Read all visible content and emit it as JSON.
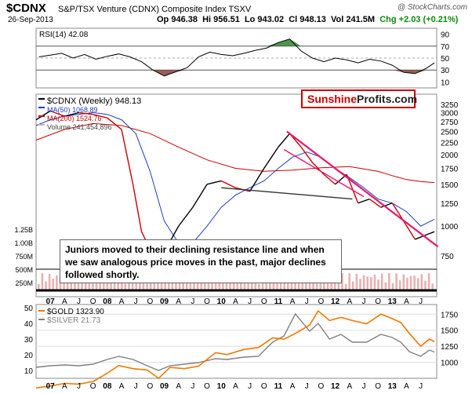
{
  "header": {
    "ticker": "$CDNX",
    "name": "S&P/TSX Venture (CDNX) Composite Index TSXV",
    "credit": "@ StockCharts.com",
    "date": "26-Sep-2013",
    "open": "Op 946.38",
    "high": "Hi 956.51",
    "low": "Lo 943.02",
    "close": "Cl 948.13",
    "volume": "Vol 241.5M",
    "change": "Chg +2.03 (+0.21%)",
    "change_color": "#0a8a0a"
  },
  "brand": {
    "part1": "Sunshine",
    "part2": "Profits.com"
  },
  "annotation": "Juniors moved to their declining resistance line and when we saw analogous price moves in the past, major declines followed shortly.",
  "chart_data": [
    {
      "type": "line",
      "panel": "rsi",
      "legend": [
        "RSI(14) 42.08"
      ],
      "ylim": [
        0,
        100
      ],
      "yticks": [
        10,
        30,
        50,
        70,
        90
      ],
      "x": [
        2006.8,
        2007.0,
        2007.2,
        2007.4,
        2007.6,
        2007.8,
        2008.0,
        2008.2,
        2008.4,
        2008.6,
        2008.8,
        2009.0,
        2009.2,
        2009.4,
        2009.6,
        2009.8,
        2010.0,
        2010.2,
        2010.4,
        2010.6,
        2010.8,
        2011.0,
        2011.2,
        2011.4,
        2011.6,
        2011.8,
        2012.0,
        2012.2,
        2012.4,
        2012.6,
        2012.8,
        2013.0,
        2013.2,
        2013.4,
        2013.6,
        2013.74
      ],
      "values": [
        52,
        55,
        58,
        50,
        56,
        48,
        53,
        57,
        52,
        44,
        30,
        20,
        27,
        34,
        52,
        60,
        56,
        54,
        58,
        63,
        67,
        76,
        82,
        62,
        50,
        44,
        50,
        47,
        42,
        48,
        45,
        38,
        26,
        24,
        33,
        42
      ],
      "overbought": 70,
      "oversold": 30,
      "colors": {
        "line": "#000000",
        "overbought_fill": "#3a8a3a",
        "oversold_fill": "#8b4a42"
      }
    },
    {
      "type": "line",
      "panel": "price",
      "legend": [
        "$CDNX (Weekly) 948.13",
        "MA(50) 1068.89",
        "MA(200) 1524.76",
        "Volume 241,454,896"
      ],
      "yticks_right": [
        3250,
        3000,
        2750,
        2500,
        2250,
        2000,
        1750,
        1500,
        1250,
        1000,
        750
      ],
      "volume_ticks_left": [
        "1.25B",
        "1.00B",
        "750M",
        "500M",
        "250M"
      ],
      "xticks": [
        "07",
        "A",
        "J",
        "O",
        "08",
        "A",
        "J",
        "O",
        "09",
        "A",
        "J",
        "O",
        "10",
        "A",
        "J",
        "O",
        "11",
        "A",
        "J",
        "O",
        "12",
        "A",
        "J",
        "O",
        "13",
        "A",
        "J"
      ],
      "bold_years": [
        "07",
        "08",
        "09",
        "10",
        "11",
        "12",
        "13"
      ],
      "price": {
        "x": [
          2006.75,
          2007.0,
          2007.25,
          2007.5,
          2007.75,
          2008.0,
          2008.25,
          2008.45,
          2008.6,
          2008.75,
          2008.9,
          2009.0,
          2009.25,
          2009.5,
          2009.75,
          2010.0,
          2010.25,
          2010.5,
          2010.75,
          2011.0,
          2011.2,
          2011.4,
          2011.6,
          2011.8,
          2012.0,
          2012.2,
          2012.4,
          2012.6,
          2012.8,
          2013.0,
          2013.2,
          2013.4,
          2013.6,
          2013.74
        ],
        "values": [
          2800,
          3050,
          2900,
          3000,
          2950,
          2850,
          2550,
          1500,
          950,
          800,
          700,
          780,
          1000,
          1200,
          1500,
          1550,
          1450,
          1400,
          1750,
          2150,
          2450,
          2150,
          1850,
          1650,
          1500,
          1650,
          1250,
          1300,
          1200,
          1250,
          1050,
          880,
          920,
          948
        ]
      },
      "ma50": {
        "x": [
          2006.75,
          2007.0,
          2007.25,
          2007.5,
          2007.75,
          2008.0,
          2008.25,
          2008.5,
          2008.75,
          2009.0,
          2009.25,
          2009.5,
          2009.75,
          2010.0,
          2010.25,
          2010.5,
          2010.75,
          2011.0,
          2011.25,
          2011.5,
          2011.75,
          2012.0,
          2012.25,
          2012.5,
          2012.75,
          2013.0,
          2013.25,
          2013.5,
          2013.74
        ],
        "values": [
          2650,
          2800,
          2900,
          2950,
          3000,
          2950,
          2800,
          2450,
          1700,
          1050,
          850,
          850,
          1000,
          1200,
          1350,
          1450,
          1550,
          1750,
          1950,
          2050,
          1950,
          1750,
          1600,
          1450,
          1300,
          1250,
          1150,
          1000,
          1069
        ]
      },
      "ma200": {
        "x": [
          2006.75,
          2007.25,
          2007.75,
          2008.25,
          2008.75,
          2009.25,
          2009.75,
          2010.25,
          2010.75,
          2011.25,
          2011.75,
          2012.25,
          2012.75,
          2013.0,
          2013.25,
          2013.5,
          2013.74
        ],
        "values": [
          2300,
          2550,
          2700,
          2650,
          2450,
          2150,
          1900,
          1750,
          1700,
          1720,
          1760,
          1780,
          1700,
          1630,
          1570,
          1540,
          1525
        ]
      },
      "trendlines": [
        {
          "name": "declining-resistance",
          "x": [
            2011.15,
            2013.8
          ],
          "y": [
            2500,
            820
          ]
        },
        {
          "name": "support-line",
          "x": [
            2010.0,
            2012.3
          ],
          "y": [
            1450,
            1300
          ]
        },
        {
          "name": "resistance-line-2",
          "x": [
            2011.1,
            2012.5
          ],
          "y": [
            2100,
            1330
          ]
        }
      ],
      "colors": {
        "price_up": "#000000",
        "price_down": "#cc0000",
        "ma50": "#1f3fbf",
        "ma200": "#cc0000",
        "trend": "#e8176a",
        "volume": "#e8b0b0"
      }
    },
    {
      "type": "line",
      "panel": "gold-silver",
      "legend": [
        "$GOLD 1323.90",
        "$SILVER 21.73"
      ],
      "yticks_left": [
        10,
        20,
        30,
        40,
        50
      ],
      "yticks_right": [
        1000,
        1250,
        1500,
        1750
      ],
      "gold": {
        "x": [
          2006.75,
          2007.0,
          2007.25,
          2007.5,
          2007.75,
          2008.0,
          2008.2,
          2008.45,
          2008.7,
          2008.9,
          2009.1,
          2009.35,
          2009.6,
          2009.9,
          2010.1,
          2010.4,
          2010.65,
          2010.9,
          2011.1,
          2011.3,
          2011.55,
          2011.7,
          2011.9,
          2012.1,
          2012.3,
          2012.55,
          2012.8,
          2013.0,
          2013.15,
          2013.3,
          2013.5,
          2013.65,
          2013.74
        ],
        "values": [
          600,
          630,
          670,
          660,
          700,
          830,
          950,
          900,
          880,
          750,
          920,
          900,
          940,
          1150,
          1120,
          1200,
          1230,
          1380,
          1360,
          1450,
          1580,
          1800,
          1650,
          1700,
          1650,
          1600,
          1750,
          1680,
          1620,
          1450,
          1250,
          1360,
          1324
        ]
      },
      "silver": {
        "x": [
          2006.75,
          2007.0,
          2007.25,
          2007.5,
          2007.75,
          2008.0,
          2008.2,
          2008.45,
          2008.7,
          2008.9,
          2009.1,
          2009.35,
          2009.6,
          2009.9,
          2010.1,
          2010.4,
          2010.65,
          2010.9,
          2011.1,
          2011.3,
          2011.55,
          2011.7,
          2011.9,
          2012.1,
          2012.3,
          2012.55,
          2012.8,
          2013.0,
          2013.15,
          2013.3,
          2013.5,
          2013.65,
          2013.74
        ],
        "values": [
          12,
          13,
          13.5,
          13,
          14,
          17,
          19,
          17,
          13,
          10,
          13,
          14,
          15,
          17.5,
          17,
          18.5,
          19,
          28,
          32,
          46,
          35,
          40,
          30,
          33,
          28,
          28,
          33,
          31,
          28,
          22,
          19,
          23,
          21.7
        ]
      },
      "colors": {
        "gold": "#f07800",
        "silver": "#808080"
      }
    }
  ]
}
